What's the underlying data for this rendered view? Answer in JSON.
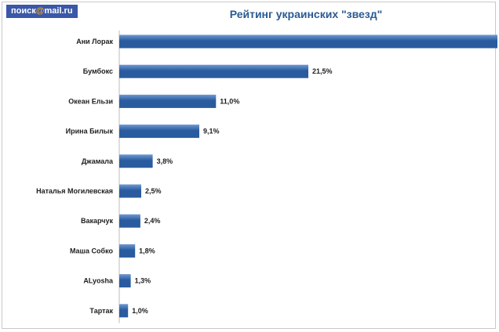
{
  "logo": {
    "pre": "поиск",
    "at": "@",
    "post": "mail.ru"
  },
  "chart_data": {
    "type": "bar",
    "orientation": "horizontal",
    "title": "Рейтинг украинских \"звезд\"",
    "categories": [
      "Ани Лорак",
      "Бумбокс",
      "Океан Ельзи",
      "Ирина Билык",
      "Джамала",
      "Наталья Могилевская",
      "Вакарчук",
      "Маша Собко",
      "ALyosha",
      "Тартак"
    ],
    "values": [
      43.0,
      21.5,
      11.0,
      9.1,
      3.8,
      2.5,
      2.4,
      1.8,
      1.3,
      1.0
    ],
    "data_labels": [
      "",
      "21,5%",
      "11,0%",
      "9,1%",
      "3,8%",
      "2,5%",
      "2,4%",
      "1,8%",
      "1,3%",
      "1,0%"
    ],
    "bar_color": "#2a5b9e",
    "bar_color_light": "#6f9ad3",
    "grid": false,
    "legend": "none"
  }
}
